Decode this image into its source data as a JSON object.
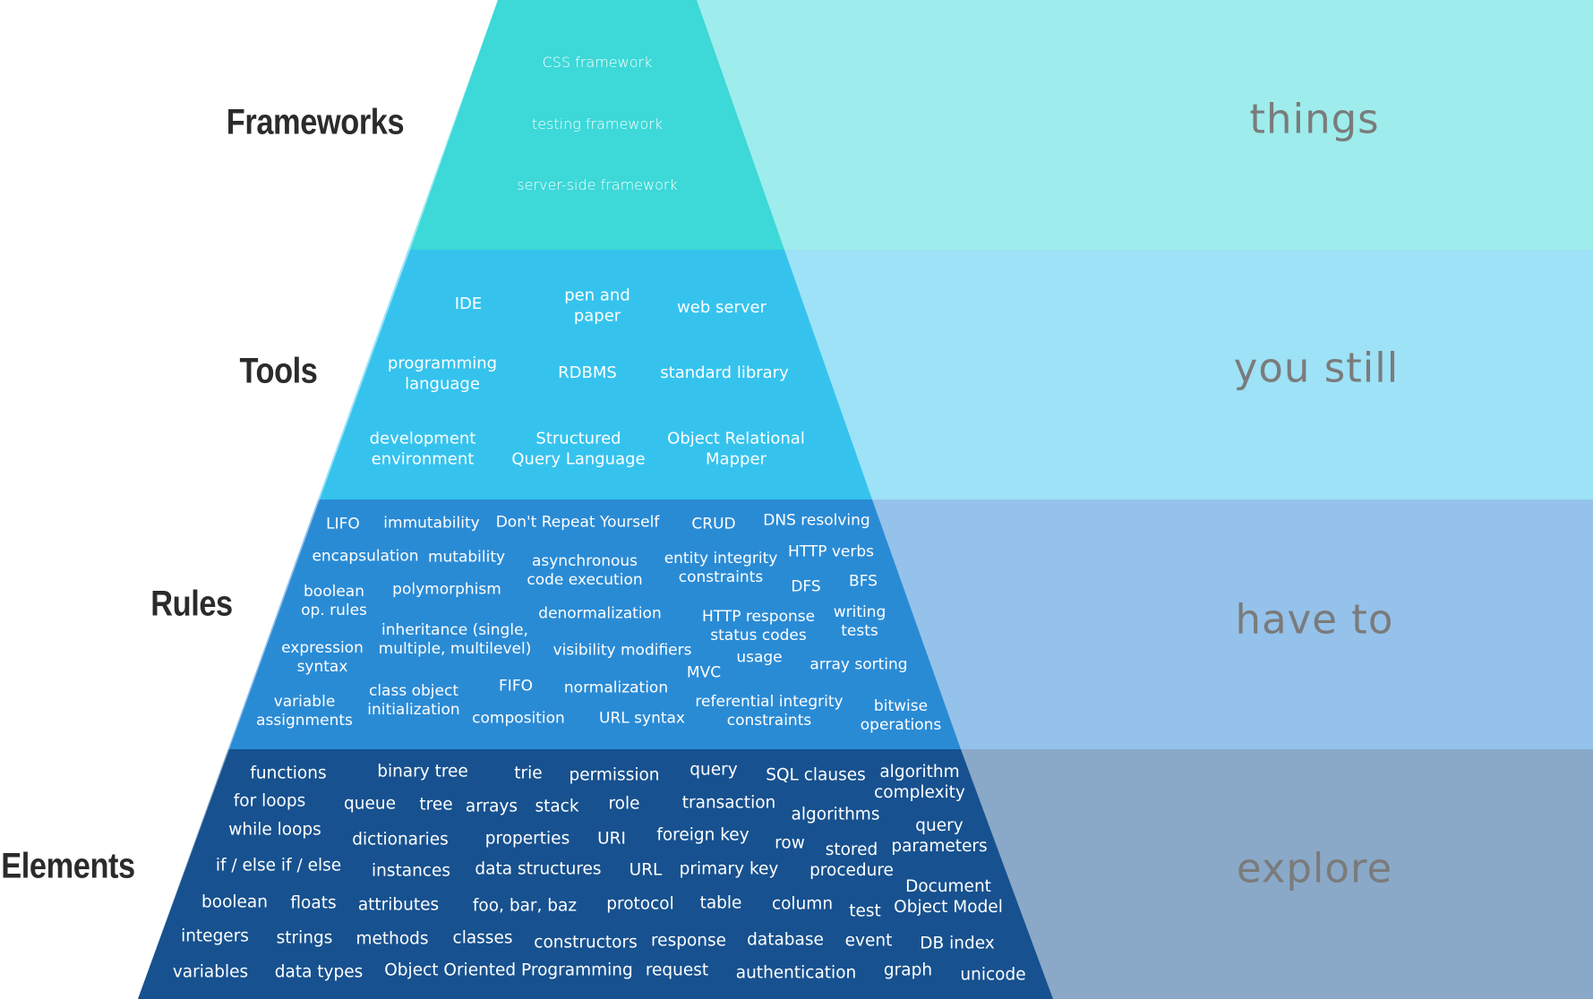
{
  "colors": {
    "frameworks": "#3dd8d8",
    "tools": "#35c3ee",
    "rules": "#2a8bd5",
    "elements": "#17518f",
    "band_frameworks": "#9eecec",
    "band_tools": "#9de2f6",
    "band_rules": "#94c2ea",
    "band_elements": "#8aa9c8",
    "label_text": "#2b2b2b",
    "side_text": "#7b7b7b"
  },
  "levels": [
    {
      "id": "frameworks",
      "label": "Frameworks",
      "side_text": "things",
      "terms": [
        "CSS framework",
        "testing framework",
        "server-side framework"
      ]
    },
    {
      "id": "tools",
      "label": "Tools",
      "side_text": "you still",
      "terms": [
        "IDE",
        "pen and\npaper",
        "web server",
        "programming\nlanguage",
        "RDBMS",
        "standard library",
        "development\nenvironment",
        "Structured\nQuery Language",
        "Object Relational\nMapper"
      ]
    },
    {
      "id": "rules",
      "label": "Rules",
      "side_text": "have to",
      "terms": [
        "LIFO",
        "immutability",
        "Don't Repeat Yourself",
        "CRUD",
        "DNS resolving",
        "encapsulation",
        "mutability",
        "asynchronous\ncode execution",
        "entity integrity\nconstraints",
        "HTTP verbs",
        "boolean\nop. rules",
        "polymorphism",
        "DFS",
        "BFS",
        "denormalization",
        "HTTP response\nstatus  codes",
        "writing\ntests",
        "inheritance (single,\nmultiple, multilevel)",
        "expression\nsyntax",
        "visibility modifiers",
        "usage",
        "MVC",
        "array sorting",
        "FIFO",
        "normalization",
        "variable\nassignments",
        "class object\ninitialization",
        "referential integrity\nconstraints",
        "bitwise\noperations",
        "composition",
        "URL syntax"
      ]
    },
    {
      "id": "elements",
      "label": "Elements",
      "side_text": "explore",
      "terms": [
        "functions",
        "binary tree",
        "trie",
        "permission",
        "query",
        "SQL clauses",
        "algorithm\ncomplexity",
        "for loops",
        "queue",
        "tree",
        "arrays",
        "stack",
        "role",
        "transaction",
        "algorithms",
        "while loops",
        "query\nparameters",
        "dictionaries",
        "properties",
        "URI",
        "foreign key",
        "row",
        "stored\nprocedure",
        "if / else if / else",
        "instances",
        "data structures",
        "URL",
        "primary key",
        "Document\nObject Model",
        "boolean",
        "floats",
        "attributes",
        "foo, bar, baz",
        "protocol",
        "table",
        "column",
        "test",
        "integers",
        "strings",
        "methods",
        "classes",
        "constructors",
        "response",
        "database",
        "event",
        "DB index",
        "variables",
        "data types",
        "Object Oriented Programming",
        "request",
        "authentication",
        "graph",
        "unicode"
      ]
    }
  ]
}
